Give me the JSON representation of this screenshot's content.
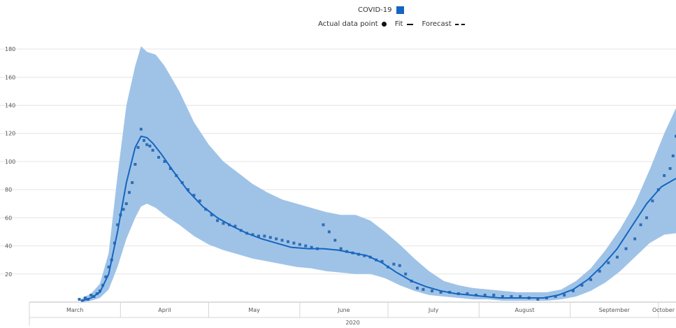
{
  "legend": {
    "title": "COVID-19",
    "actual_label": "Actual data point",
    "fit_label": "Fit",
    "forecast_label": "Forecast"
  },
  "colors": {
    "band": "#9fc3e7",
    "line": "#1565c0",
    "points": "#2f6db5",
    "grid": "#e4e4e4",
    "axis_text": "#555555"
  },
  "chart_data": {
    "type": "line",
    "title": "",
    "xlabel": "",
    "ylabel": "",
    "ylim": [
      0,
      190
    ],
    "xlim": [
      "2020-03-01",
      "2020-10-07"
    ],
    "y_ticks": [
      20,
      40,
      60,
      80,
      100,
      120,
      140,
      160,
      180
    ],
    "x_tick_labels": [
      "March",
      "April",
      "May",
      "June",
      "July",
      "August",
      "September",
      "October"
    ],
    "x_year_label": "2020",
    "series": [
      {
        "name": "Fit",
        "role": "fit",
        "x": [
          "2020-03-19",
          "2020-03-22",
          "2020-03-25",
          "2020-03-28",
          "2020-03-31",
          "2020-04-03",
          "2020-04-06",
          "2020-04-08",
          "2020-04-10",
          "2020-04-12",
          "2020-04-15",
          "2020-04-19",
          "2020-04-24",
          "2020-04-29",
          "2020-05-04",
          "2020-05-09",
          "2020-05-14",
          "2020-05-19",
          "2020-05-24",
          "2020-05-29",
          "2020-06-04",
          "2020-06-09",
          "2020-06-14",
          "2020-06-19",
          "2020-06-24",
          "2020-06-29",
          "2020-07-04",
          "2020-07-09",
          "2020-07-14",
          "2020-07-19",
          "2020-07-24",
          "2020-07-29",
          "2020-08-03",
          "2020-08-08",
          "2020-08-13",
          "2020-08-18",
          "2020-08-23",
          "2020-08-28",
          "2020-09-02",
          "2020-09-07",
          "2020-09-12",
          "2020-09-17",
          "2020-09-22",
          "2020-09-27",
          "2020-10-02",
          "2020-10-07"
        ],
        "y": [
          1,
          3,
          7,
          20,
          50,
          85,
          110,
          118,
          117,
          113,
          105,
          93,
          79,
          68,
          60,
          54,
          49,
          45,
          42,
          39,
          38,
          38,
          37,
          35,
          33,
          28,
          21,
          15,
          11,
          8,
          6,
          5,
          4,
          3,
          3,
          3,
          3,
          5,
          9,
          16,
          26,
          38,
          54,
          70,
          82,
          88
        ]
      },
      {
        "name": "Upper bound",
        "role": "band-upper",
        "x": [
          "2020-03-19",
          "2020-03-22",
          "2020-03-25",
          "2020-03-28",
          "2020-03-31",
          "2020-04-03",
          "2020-04-06",
          "2020-04-08",
          "2020-04-10",
          "2020-04-13",
          "2020-04-16",
          "2020-04-21",
          "2020-04-26",
          "2020-05-01",
          "2020-05-06",
          "2020-05-11",
          "2020-05-16",
          "2020-05-21",
          "2020-05-26",
          "2020-05-31",
          "2020-06-05",
          "2020-06-10",
          "2020-06-15",
          "2020-06-20",
          "2020-06-25",
          "2020-06-30",
          "2020-07-05",
          "2020-07-10",
          "2020-07-15",
          "2020-07-20",
          "2020-07-25",
          "2020-07-30",
          "2020-08-04",
          "2020-08-09",
          "2020-08-14",
          "2020-08-19",
          "2020-08-24",
          "2020-08-29",
          "2020-09-03",
          "2020-09-08",
          "2020-09-13",
          "2020-09-18",
          "2020-09-23",
          "2020-09-28",
          "2020-10-03",
          "2020-10-07"
        ],
        "y": [
          3,
          6,
          13,
          35,
          90,
          140,
          168,
          182,
          178,
          176,
          168,
          150,
          128,
          112,
          100,
          92,
          84,
          78,
          73,
          70,
          67,
          64,
          62,
          62,
          58,
          50,
          41,
          31,
          22,
          15,
          12,
          10,
          9,
          8,
          7,
          7,
          7,
          9,
          15,
          24,
          37,
          52,
          70,
          94,
          120,
          138
        ]
      },
      {
        "name": "Lower bound",
        "role": "band-lower",
        "x": [
          "2020-03-19",
          "2020-03-22",
          "2020-03-25",
          "2020-03-28",
          "2020-03-31",
          "2020-04-03",
          "2020-04-06",
          "2020-04-08",
          "2020-04-10",
          "2020-04-13",
          "2020-04-16",
          "2020-04-21",
          "2020-04-26",
          "2020-05-01",
          "2020-05-06",
          "2020-05-11",
          "2020-05-16",
          "2020-05-21",
          "2020-05-26",
          "2020-05-31",
          "2020-06-05",
          "2020-06-10",
          "2020-06-15",
          "2020-06-20",
          "2020-06-25",
          "2020-06-30",
          "2020-07-05",
          "2020-07-10",
          "2020-07-15",
          "2020-07-20",
          "2020-07-25",
          "2020-07-30",
          "2020-08-04",
          "2020-08-09",
          "2020-08-14",
          "2020-08-19",
          "2020-08-24",
          "2020-08-29",
          "2020-09-03",
          "2020-09-08",
          "2020-09-13",
          "2020-09-18",
          "2020-09-23",
          "2020-09-28",
          "2020-10-03",
          "2020-10-07"
        ],
        "y": [
          0,
          1,
          3,
          9,
          25,
          45,
          60,
          68,
          70,
          67,
          62,
          55,
          47,
          41,
          37,
          34,
          31,
          29,
          27,
          25,
          24,
          22,
          21,
          20,
          20,
          17,
          12,
          8,
          5,
          4,
          3,
          2,
          2,
          1,
          1,
          1,
          1,
          2,
          4,
          8,
          14,
          22,
          32,
          42,
          48,
          49
        ]
      },
      {
        "name": "Actual data point",
        "role": "points",
        "x": [
          "2020-03-18",
          "2020-03-19",
          "2020-03-20",
          "2020-03-21",
          "2020-03-22",
          "2020-03-23",
          "2020-03-24",
          "2020-03-25",
          "2020-03-26",
          "2020-03-27",
          "2020-03-28",
          "2020-03-29",
          "2020-03-30",
          "2020-03-31",
          "2020-04-01",
          "2020-04-02",
          "2020-04-03",
          "2020-04-04",
          "2020-04-05",
          "2020-04-06",
          "2020-04-07",
          "2020-04-08",
          "2020-04-09",
          "2020-04-10",
          "2020-04-11",
          "2020-04-12",
          "2020-04-14",
          "2020-04-16",
          "2020-04-18",
          "2020-04-20",
          "2020-04-22",
          "2020-04-24",
          "2020-04-26",
          "2020-04-28",
          "2020-04-30",
          "2020-05-02",
          "2020-05-04",
          "2020-05-06",
          "2020-05-08",
          "2020-05-10",
          "2020-05-12",
          "2020-05-14",
          "2020-05-16",
          "2020-05-18",
          "2020-05-20",
          "2020-05-22",
          "2020-05-24",
          "2020-05-26",
          "2020-05-28",
          "2020-05-30",
          "2020-06-01",
          "2020-06-03",
          "2020-06-05",
          "2020-06-07",
          "2020-06-09",
          "2020-06-11",
          "2020-06-13",
          "2020-06-15",
          "2020-06-17",
          "2020-06-19",
          "2020-06-21",
          "2020-06-23",
          "2020-06-25",
          "2020-06-27",
          "2020-06-29",
          "2020-07-01",
          "2020-07-03",
          "2020-07-05",
          "2020-07-07",
          "2020-07-09",
          "2020-07-11",
          "2020-07-13",
          "2020-07-16",
          "2020-07-19",
          "2020-07-22",
          "2020-07-25",
          "2020-07-28",
          "2020-07-31",
          "2020-08-03",
          "2020-08-06",
          "2020-08-09",
          "2020-08-12",
          "2020-08-15",
          "2020-08-18",
          "2020-08-21",
          "2020-08-24",
          "2020-08-27",
          "2020-08-30",
          "2020-09-02",
          "2020-09-05",
          "2020-09-08",
          "2020-09-11",
          "2020-09-14",
          "2020-09-17",
          "2020-09-20",
          "2020-09-23",
          "2020-09-25",
          "2020-09-27",
          "2020-09-29",
          "2020-10-01",
          "2020-10-03",
          "2020-10-05",
          "2020-10-06",
          "2020-10-07"
        ],
        "y": [
          2,
          1,
          3,
          2,
          5,
          4,
          6,
          8,
          12,
          18,
          25,
          30,
          42,
          55,
          62,
          66,
          70,
          78,
          85,
          98,
          110,
          123,
          115,
          112,
          111,
          108,
          103,
          100,
          95,
          90,
          85,
          80,
          76,
          72,
          66,
          62,
          58,
          56,
          55,
          54,
          51,
          49,
          48,
          47,
          47,
          46,
          45,
          44,
          43,
          42,
          41,
          40,
          39,
          38,
          55,
          50,
          44,
          38,
          36,
          35,
          34,
          33,
          32,
          30,
          29,
          25,
          27,
          26,
          20,
          15,
          10,
          9,
          8,
          7,
          7,
          6,
          6,
          5,
          5,
          5,
          4,
          4,
          4,
          3,
          2,
          3,
          4,
          5,
          8,
          12,
          16,
          22,
          28,
          32,
          38,
          45,
          55,
          60,
          72,
          80,
          90,
          95,
          104,
          118
        ]
      }
    ]
  }
}
